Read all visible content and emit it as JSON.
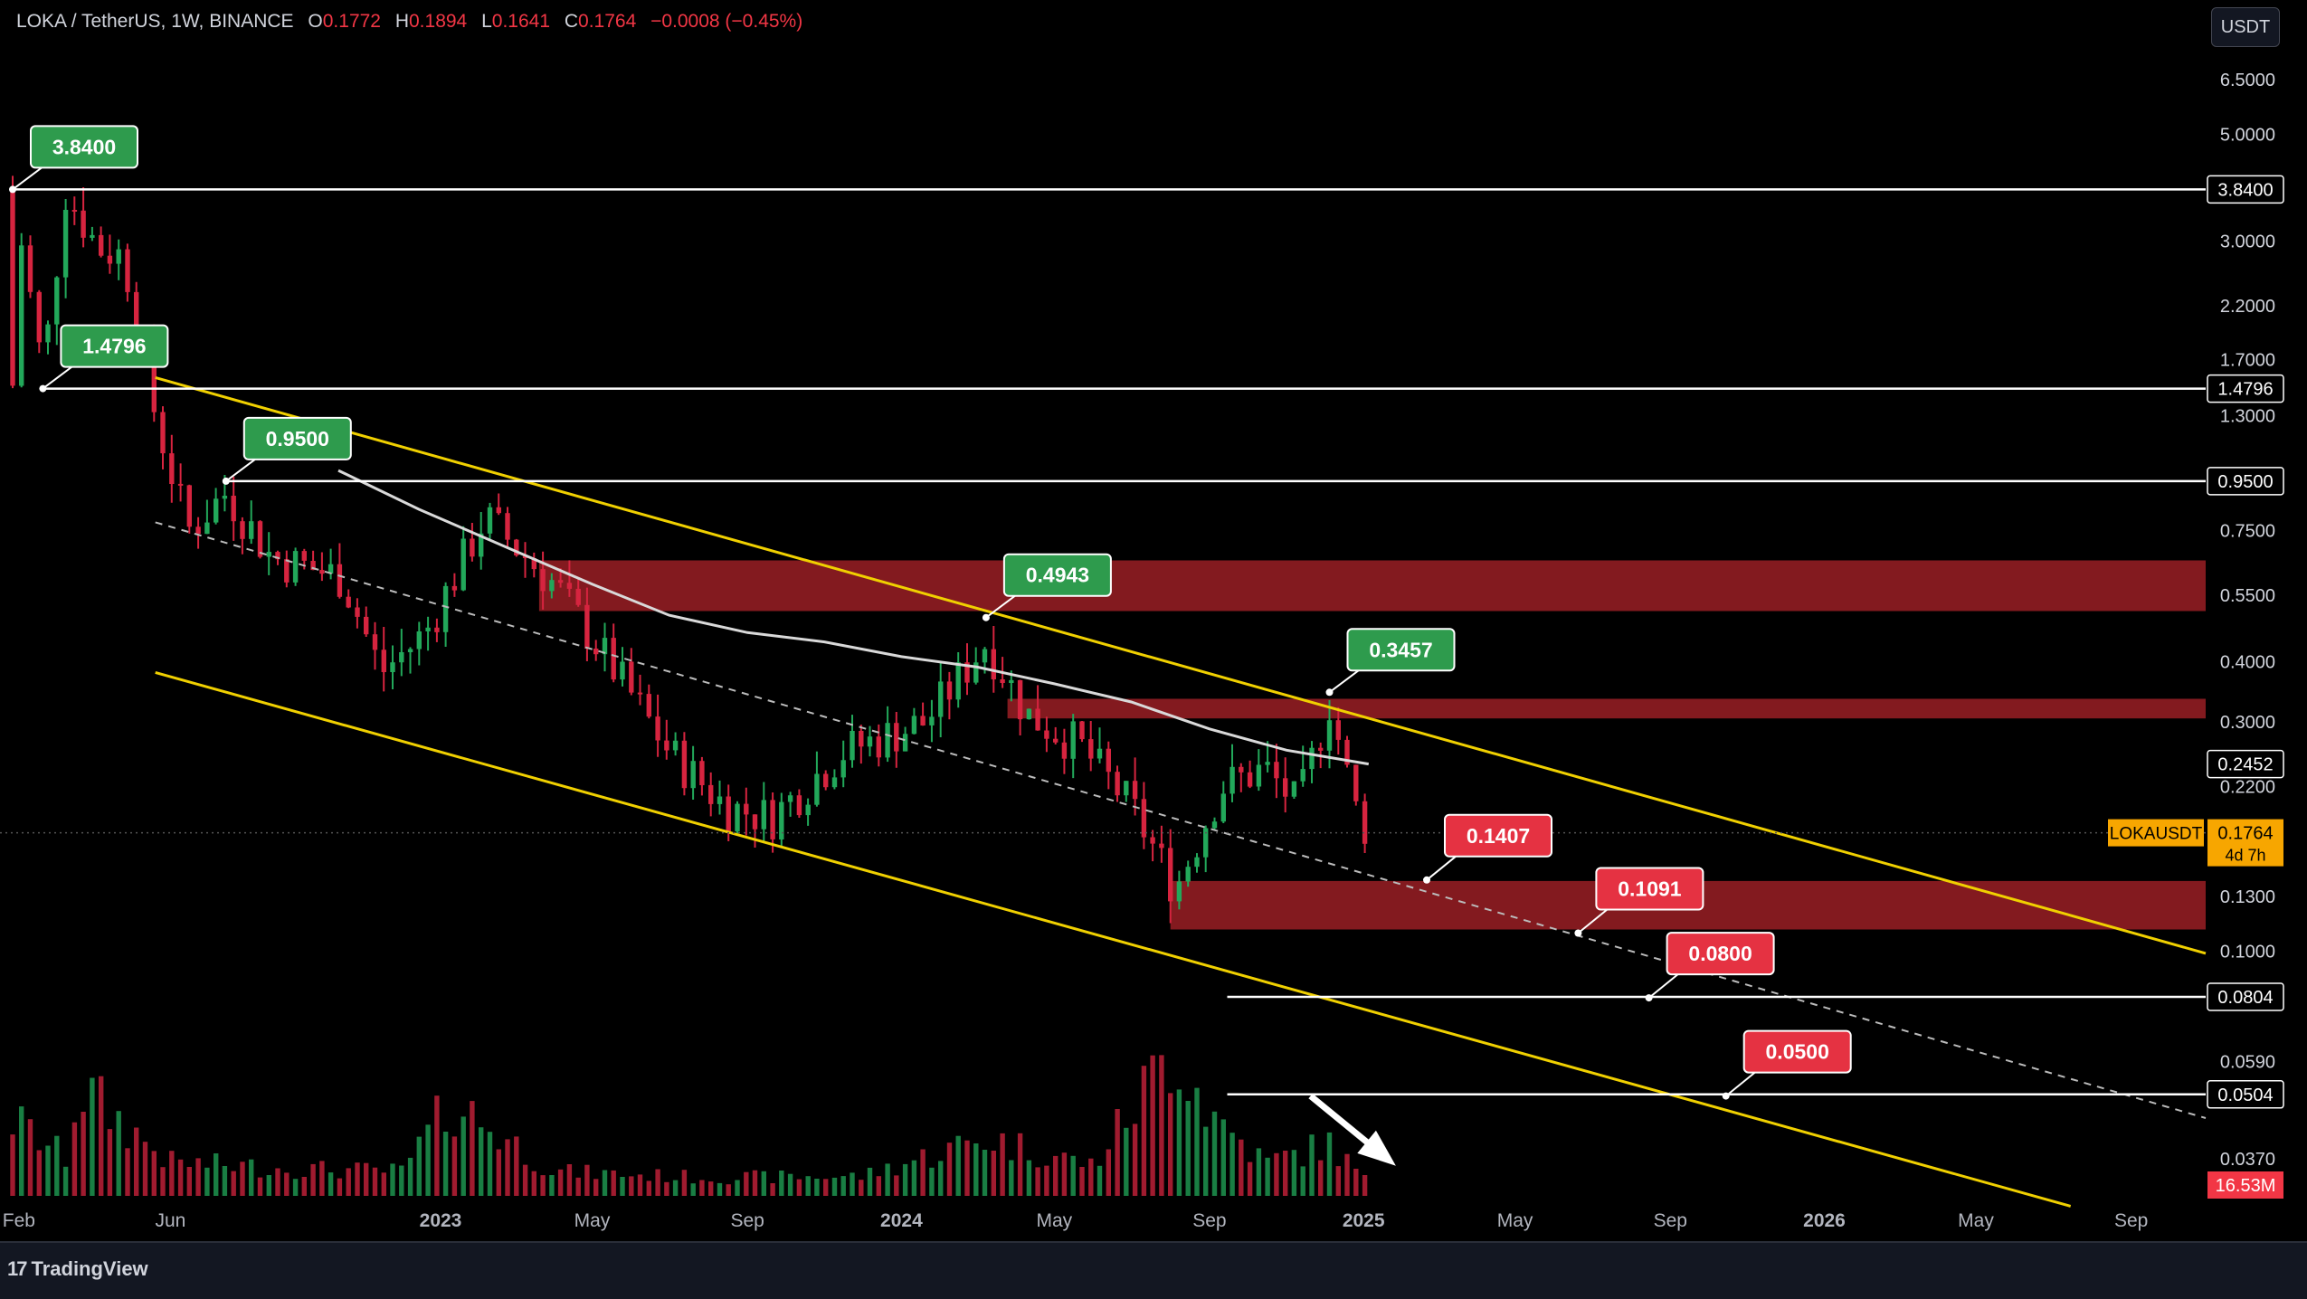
{
  "header": {
    "symbol": "LOKA / TetherUS, 1W, BINANCE",
    "open_label": "O",
    "open": "0.1772",
    "high_label": "H",
    "high": "0.1894",
    "low_label": "L",
    "low": "0.1641",
    "close_label": "C",
    "close": "0.1764",
    "change": "−0.0008 (−0.45%)"
  },
  "currency_button": "USDT",
  "branding": {
    "logo_text": "TradingView",
    "logo_mark": "17"
  },
  "colors": {
    "bull": "#22a85a",
    "bear": "#d6243f",
    "channel": "#f0d000",
    "level": "#ffffff",
    "zone": "#8e1c22",
    "green_label": "#2e9b4d",
    "red_label": "#e53242",
    "ma": "#d9d9d9"
  },
  "chart_data": {
    "type": "candlestick",
    "scale": "log",
    "ylim": [
      0.031,
      8.0
    ],
    "x_range": [
      "2022-01-17",
      "2026-10-30"
    ],
    "x_ticks": [
      {
        "label": "Feb",
        "date": "2022-02-01"
      },
      {
        "label": "Jun",
        "date": "2022-06-01"
      },
      {
        "label": "2023",
        "date": "2023-01-01"
      },
      {
        "label": "May",
        "date": "2023-05-01"
      },
      {
        "label": "Sep",
        "date": "2023-09-01"
      },
      {
        "label": "2024",
        "date": "2024-01-01"
      },
      {
        "label": "May",
        "date": "2024-05-01"
      },
      {
        "label": "Sep",
        "date": "2024-09-01"
      },
      {
        "label": "2025",
        "date": "2025-01-01"
      },
      {
        "label": "May",
        "date": "2025-05-01"
      },
      {
        "label": "Sep",
        "date": "2025-09-01"
      },
      {
        "label": "2026",
        "date": "2026-01-01"
      },
      {
        "label": "May",
        "date": "2026-05-01"
      },
      {
        "label": "Sep",
        "date": "2026-09-01"
      }
    ],
    "y_ticks": [
      "6.5000",
      "5.0000",
      "3.0000",
      "2.2000",
      "1.7000",
      "1.3000",
      "0.7500",
      "0.5500",
      "0.4000",
      "0.3000",
      "0.2200",
      "0.1300",
      "0.1000",
      "0.0590",
      "0.0370"
    ],
    "horizontal_levels": [
      {
        "value": 3.84,
        "label": "3.8400",
        "from": "2022-01-27"
      },
      {
        "value": 1.4796,
        "label": "1.4796",
        "from": "2022-02-20"
      },
      {
        "value": 0.95,
        "label": "0.9500",
        "from": "2022-07-15"
      },
      {
        "value": 0.0804,
        "label": "0.0804",
        "from": "2024-09-15"
      },
      {
        "value": 0.0504,
        "label": "0.0504",
        "from": "2024-09-15"
      }
    ],
    "zones": [
      {
        "from": "2023-03-20",
        "to": "2026-10-30",
        "top": 0.65,
        "bottom": 0.51
      },
      {
        "from": "2024-03-25",
        "to": "2026-10-30",
        "top": 0.335,
        "bottom": 0.305
      },
      {
        "from": "2024-08-01",
        "to": "2026-10-30",
        "top": 0.14,
        "bottom": 0.111
      }
    ],
    "channel": {
      "upper": [
        {
          "date": "2022-05-20",
          "value": 1.56
        },
        {
          "date": "2026-10-30",
          "value": 0.099
        }
      ],
      "lower": [
        {
          "date": "2022-05-20",
          "value": 0.38
        },
        {
          "date": "2026-07-15",
          "value": 0.0295
        }
      ],
      "median": [
        {
          "date": "2022-05-20",
          "value": 0.78
        },
        {
          "date": "2026-10-30",
          "value": 0.045
        }
      ]
    },
    "price_annotations": [
      {
        "label": "3.8400",
        "kind": "high",
        "date": "2022-01-27",
        "value": 3.84
      },
      {
        "label": "1.4796",
        "kind": "high",
        "date": "2022-02-20",
        "value": 1.4796
      },
      {
        "label": "0.9500",
        "kind": "high",
        "date": "2022-07-15",
        "value": 0.95
      },
      {
        "label": "0.4943",
        "kind": "high",
        "date": "2024-03-08",
        "value": 0.4943
      },
      {
        "label": "0.3457",
        "kind": "high",
        "date": "2024-12-05",
        "value": 0.3457
      },
      {
        "label": "0.1407",
        "kind": "target",
        "date": "2025-02-20",
        "value": 0.1407
      },
      {
        "label": "0.1091",
        "kind": "target",
        "date": "2025-06-20",
        "value": 0.1091
      },
      {
        "label": "0.0800",
        "kind": "target",
        "date": "2025-08-15",
        "value": 0.08
      },
      {
        "label": "0.0500",
        "kind": "target",
        "date": "2025-10-15",
        "value": 0.05
      }
    ],
    "projection_arrow": {
      "from": {
        "date": "2024-11-20",
        "value": 0.05
      },
      "to": {
        "date": "2025-01-20",
        "value": 0.037
      }
    },
    "price_badges": [
      {
        "value": 3.84,
        "label": "3.8400"
      },
      {
        "value": 1.4796,
        "label": "1.4796"
      },
      {
        "value": 0.95,
        "label": "0.9500"
      },
      {
        "value": 0.2452,
        "label": "0.2452"
      },
      {
        "value": 0.0804,
        "label": "0.0804"
      },
      {
        "value": 0.0504,
        "label": "0.0504"
      }
    ],
    "last_price": {
      "value": 0.1764,
      "label": "0.1764",
      "symbol": "LOKAUSDT",
      "countdown": "4d 7h"
    },
    "volume_label": "16.53M",
    "moving_average": [
      {
        "date": "2022-10-12",
        "value": 1.0
      },
      {
        "date": "2022-12-15",
        "value": 0.83
      },
      {
        "date": "2023-03-01",
        "value": 0.68
      },
      {
        "date": "2023-05-01",
        "value": 0.58
      },
      {
        "date": "2023-07-01",
        "value": 0.5
      },
      {
        "date": "2023-09-01",
        "value": 0.46
      },
      {
        "date": "2023-11-01",
        "value": 0.44
      },
      {
        "date": "2024-01-01",
        "value": 0.41
      },
      {
        "date": "2024-03-01",
        "value": 0.39
      },
      {
        "date": "2024-05-01",
        "value": 0.36
      },
      {
        "date": "2024-07-01",
        "value": 0.33
      },
      {
        "date": "2024-09-01",
        "value": 0.29
      },
      {
        "date": "2024-11-01",
        "value": 0.262
      },
      {
        "date": "2025-01-05",
        "value": 0.2452
      }
    ],
    "price_path": [
      {
        "date": "2022-01-27",
        "value": 3.84
      },
      {
        "date": "2022-02-20",
        "value": 1.6
      },
      {
        "date": "2022-03-10",
        "value": 3.8
      },
      {
        "date": "2022-04-05",
        "value": 2.9
      },
      {
        "date": "2022-04-25",
        "value": 2.8
      },
      {
        "date": "2022-05-20",
        "value": 1.3
      },
      {
        "date": "2022-06-15",
        "value": 0.75
      },
      {
        "date": "2022-07-15",
        "value": 0.9
      },
      {
        "date": "2022-08-20",
        "value": 0.66
      },
      {
        "date": "2022-10-15",
        "value": 0.6
      },
      {
        "date": "2022-11-15",
        "value": 0.38
      },
      {
        "date": "2022-12-20",
        "value": 0.46
      },
      {
        "date": "2023-02-05",
        "value": 0.8
      },
      {
        "date": "2023-04-01",
        "value": 0.58
      },
      {
        "date": "2023-05-20",
        "value": 0.38
      },
      {
        "date": "2023-07-01",
        "value": 0.26
      },
      {
        "date": "2023-08-15",
        "value": 0.2
      },
      {
        "date": "2023-09-20",
        "value": 0.19
      },
      {
        "date": "2023-11-15",
        "value": 0.26
      },
      {
        "date": "2024-01-20",
        "value": 0.3
      },
      {
        "date": "2024-03-08",
        "value": 0.44
      },
      {
        "date": "2024-04-10",
        "value": 0.31
      },
      {
        "date": "2024-05-20",
        "value": 0.27
      },
      {
        "date": "2024-07-01",
        "value": 0.2
      },
      {
        "date": "2024-08-05",
        "value": 0.135
      },
      {
        "date": "2024-09-10",
        "value": 0.22
      },
      {
        "date": "2024-10-15",
        "value": 0.24
      },
      {
        "date": "2024-11-10",
        "value": 0.2
      },
      {
        "date": "2024-12-05",
        "value": 0.33
      },
      {
        "date": "2024-12-25",
        "value": 0.2
      },
      {
        "date": "2025-01-05",
        "value": 0.1764
      }
    ],
    "volume_scale_max": 1,
    "volume_path": [
      {
        "date": "2022-01-27",
        "value": 0.5
      },
      {
        "date": "2022-03-10",
        "value": 0.25
      },
      {
        "date": "2022-03-20",
        "value": 0.72
      },
      {
        "date": "2022-06-01",
        "value": 0.22
      },
      {
        "date": "2022-09-01",
        "value": 0.18
      },
      {
        "date": "2022-12-01",
        "value": 0.16
      },
      {
        "date": "2023-01-10",
        "value": 0.62
      },
      {
        "date": "2023-04-01",
        "value": 0.16
      },
      {
        "date": "2023-08-01",
        "value": 0.12
      },
      {
        "date": "2023-12-01",
        "value": 0.13
      },
      {
        "date": "2024-03-08",
        "value": 0.38
      },
      {
        "date": "2024-06-01",
        "value": 0.2
      },
      {
        "date": "2024-08-05",
        "value": 1.0
      },
      {
        "date": "2024-09-01",
        "value": 0.55
      },
      {
        "date": "2024-10-15",
        "value": 0.22
      },
      {
        "date": "2024-12-05",
        "value": 0.34
      },
      {
        "date": "2025-01-05",
        "value": 0.08
      }
    ]
  }
}
